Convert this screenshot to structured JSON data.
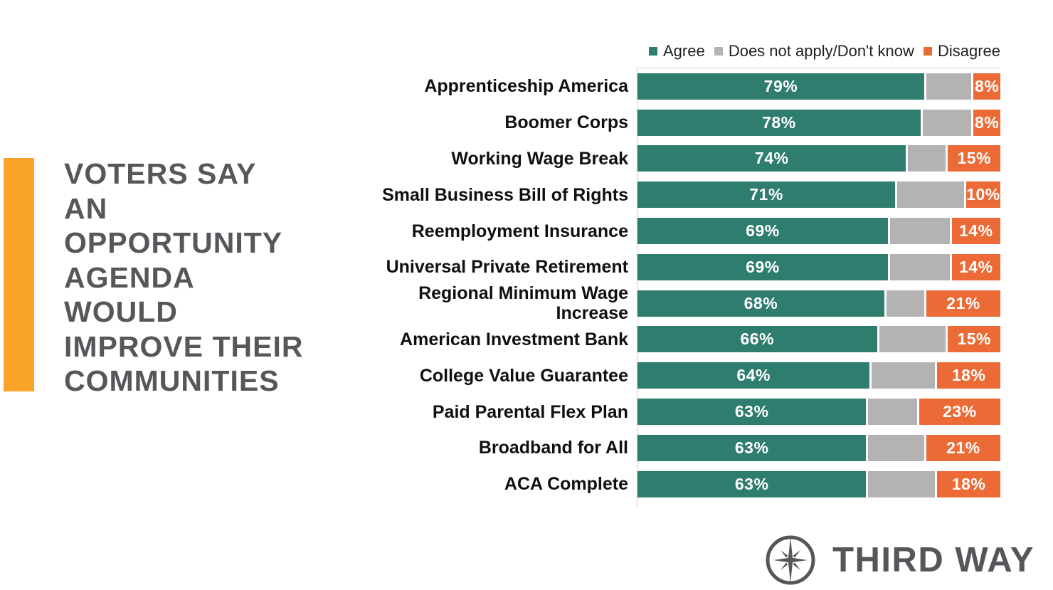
{
  "headline": {
    "text": "VOTERS SAY\nAN\nOPPORTUNITY\nAGENDA\nWOULD\nIMPROVE THEIR\nCOMMUNITIES"
  },
  "legend": {
    "items": [
      {
        "label": "Agree",
        "color": "#2e7d6e"
      },
      {
        "label": "Does not apply/Don't know",
        "color": "#b3b3b3"
      },
      {
        "label": "Disagree",
        "color": "#eb6a35"
      }
    ]
  },
  "chart_data": {
    "type": "bar",
    "orientation": "horizontal",
    "stacked": true,
    "xlim": [
      0,
      100
    ],
    "grid": false,
    "legend_position": "top-right",
    "categories": [
      "Apprenticeship America",
      "Boomer Corps",
      "Working Wage Break",
      "Small Business Bill of Rights",
      "Reemployment Insurance",
      "Universal Private Retirement",
      "Regional Minimum Wage Increase",
      "American Investment Bank",
      "College Value Guarantee",
      "Paid Parental Flex Plan",
      "Broadband for All",
      "ACA Complete"
    ],
    "series": [
      {
        "name": "Agree",
        "color": "#2e7d6e",
        "labeled": true,
        "values": [
          79,
          78,
          74,
          71,
          69,
          69,
          68,
          66,
          64,
          63,
          63,
          63
        ]
      },
      {
        "name": "Does not apply/Don't know",
        "color": "#b3b3b3",
        "labeled": false,
        "values": [
          13,
          14,
          11,
          19,
          17,
          17,
          11,
          19,
          18,
          14,
          16,
          19
        ]
      },
      {
        "name": "Disagree",
        "color": "#eb6a35",
        "labeled": true,
        "values": [
          8,
          8,
          15,
          10,
          14,
          14,
          21,
          15,
          18,
          23,
          21,
          18
        ]
      }
    ],
    "value_label_format": "{value}%"
  },
  "branding": {
    "logo_text": "THIRD WAY",
    "icon": "compass-icon"
  },
  "colors": {
    "agree": "#2e7d6e",
    "neutral": "#b3b3b3",
    "disagree": "#eb6a35",
    "accent": "#f9a328",
    "brand_gray": "#55565a"
  }
}
